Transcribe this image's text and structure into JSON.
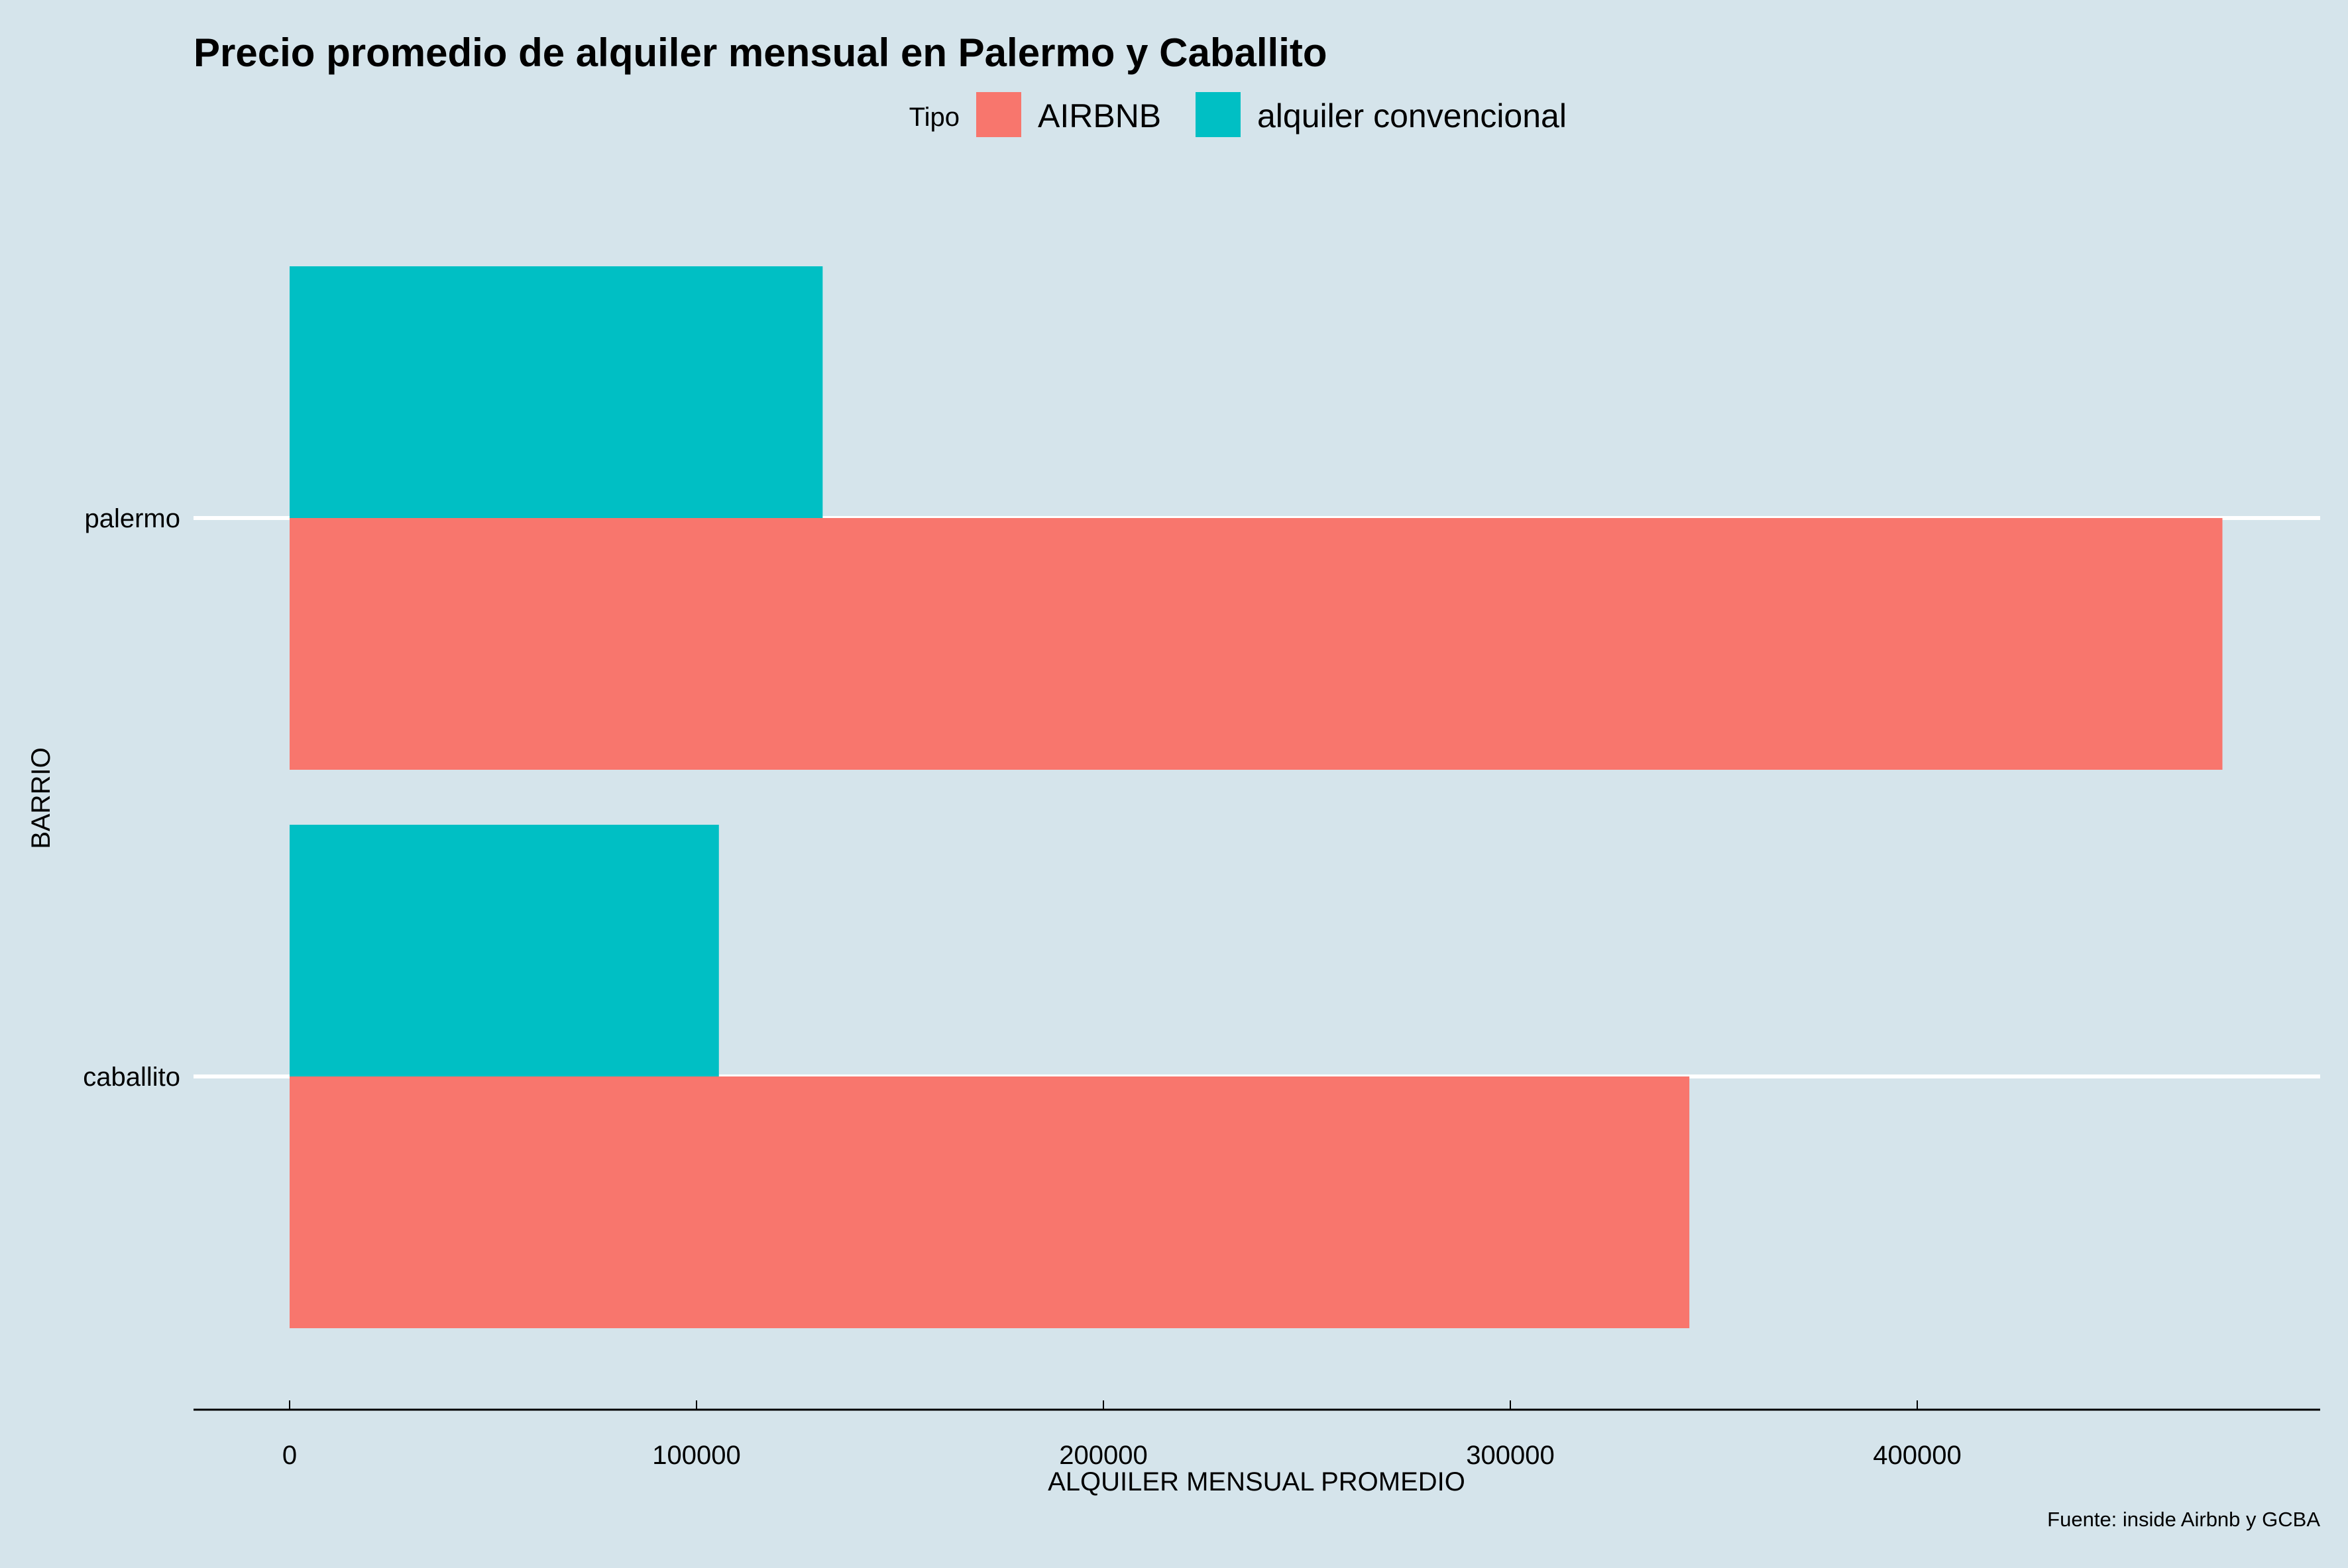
{
  "chart_data": {
    "type": "bar",
    "orientation": "horizontal",
    "title": "Precio promedio de alquiler mensual en Palermo y Caballito",
    "xlabel": "ALQUILER MENSUAL PROMEDIO",
    "ylabel": "BARRIO",
    "caption": "Fuente: inside Airbnb y GCBA",
    "legend_title": "Tipo",
    "legend_position": "top",
    "categories": [
      "palermo",
      "caballito"
    ],
    "series": [
      {
        "name": "AIRBNB",
        "color": "#f8766d",
        "values": [
          475000,
          344000
        ]
      },
      {
        "name": "alquiler convencional",
        "color": "#00bfc4",
        "values": [
          131000,
          105500
        ]
      }
    ],
    "xlim": [
      0,
      490000
    ],
    "xticks": [
      0,
      100000,
      200000,
      300000,
      400000
    ],
    "xtick_labels": [
      "0",
      "100000",
      "200000",
      "300000",
      "400000"
    ],
    "grid": "horizontal major only",
    "background": "#d5e4eb"
  }
}
